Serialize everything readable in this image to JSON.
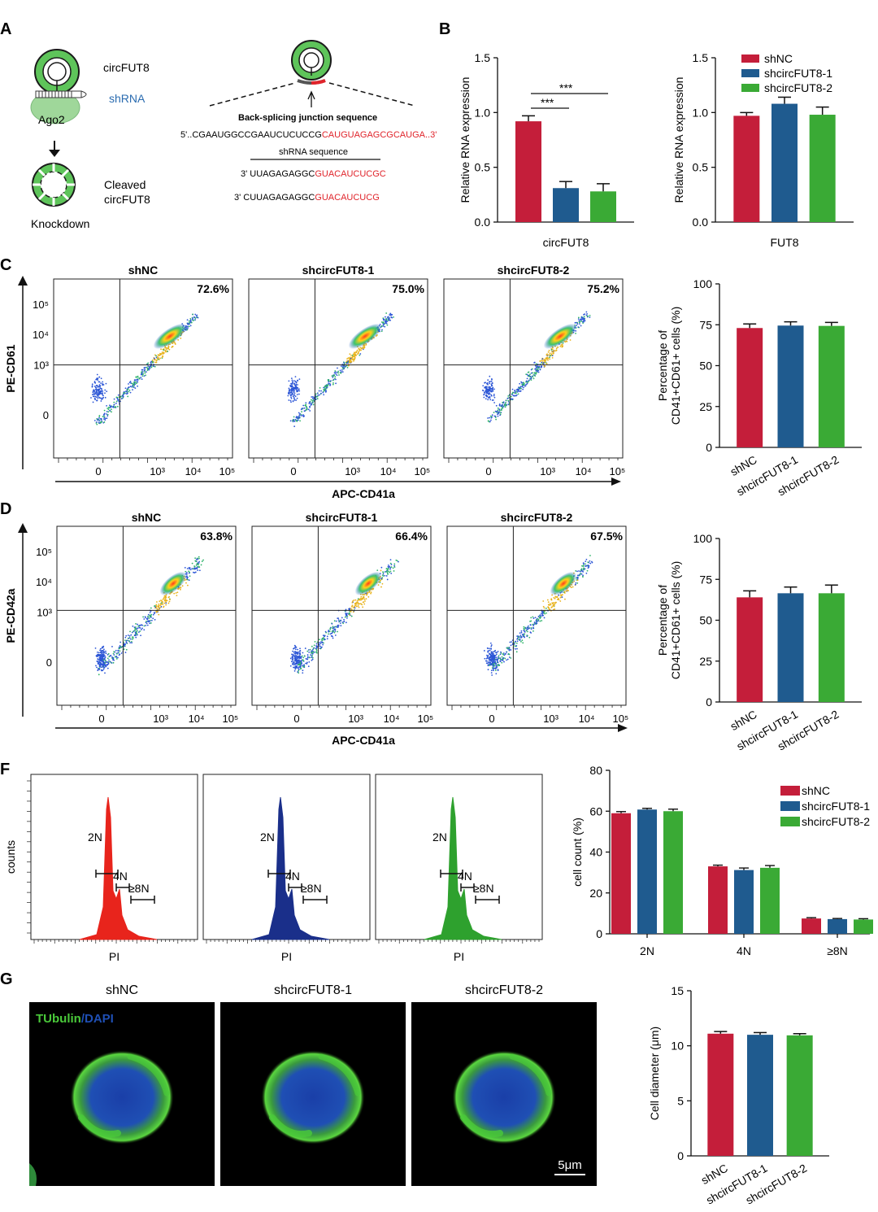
{
  "colors": {
    "red": "#c41e3a",
    "blue": "#1f5b8f",
    "green": "#3aaa35",
    "seq_red": "#e0242b",
    "histogram_red": "#e8241c",
    "histogram_blue": "#1a2f8a",
    "histogram_green": "#2ea12e",
    "cell_green": "#4ac93a",
    "cell_blue": "#1f4fb4"
  },
  "panel_A": {
    "letter": "A",
    "circ_label": "circFUT8",
    "shrna_label": "shRNA",
    "ago2_label": "Ago2",
    "cleaved_label_1": "Cleaved",
    "cleaved_label_2": "circFUT8",
    "knockdown_label": "Knockdown",
    "bsj_title": "Back-splicing junction sequence",
    "bsj_seq_black": "5'..CGAAUGGCCGAAUCUCUCCG",
    "bsj_seq_red": "CAUGUAGAGCGCAUGA..3'",
    "shrna_title": "shRNA sequence",
    "sh1_black": "3' UUAGAGAGGC",
    "sh1_red": "GUACAUCUCGC",
    "sh2_black": "3' CUUAGAGAGGC",
    "sh2_red": "GUACAUCUCG"
  },
  "panel_B": {
    "letter": "B",
    "sig1": "***",
    "sig2": "***"
  },
  "panel_C": {
    "letter": "C",
    "plots": [
      {
        "title": "shNC",
        "percent": "72.6%"
      },
      {
        "title": "shcircFUT8-1",
        "percent": "75.0%"
      },
      {
        "title": "shcircFUT8-2",
        "percent": "75.2%"
      }
    ],
    "ylabel": "PE-CD61",
    "xlabel": "APC-CD41a",
    "yticks": [
      "10⁵",
      "10⁴",
      "10³",
      "0"
    ],
    "xticks": [
      "0",
      "10³",
      "10⁴",
      "10⁵"
    ]
  },
  "panel_D": {
    "letter": "D",
    "plots": [
      {
        "title": "shNC",
        "percent": "63.8%"
      },
      {
        "title": "shcircFUT8-1",
        "percent": "66.4%"
      },
      {
        "title": "shcircFUT8-2",
        "percent": "67.5%"
      }
    ],
    "ylabel": "PE-CD42a",
    "xlabel": "APC-CD41a",
    "yticks": [
      "10⁵",
      "10⁴",
      "10³",
      "0"
    ],
    "xticks": [
      "0",
      "10³",
      "10⁴",
      "10⁵"
    ]
  },
  "panel_F": {
    "letter": "F",
    "ylabel": "counts",
    "xlabel": "PI",
    "gate_2n": "2N",
    "gate_4n": "4N",
    "gate_8n": "≥8N"
  },
  "panel_G": {
    "letter": "G",
    "titles": [
      "shNC",
      "shcircFUT8-1",
      "shcircFUT8-2"
    ],
    "stain_green": "TUbulin",
    "stain_sep": "/",
    "stain_blue": "DAPI",
    "scale_bar": "5μm"
  },
  "chart_data": [
    {
      "id": "B1",
      "type": "bar",
      "categories": [
        "shNC",
        "shcircFUT8-1",
        "shcircFUT8-2"
      ],
      "values": [
        0.92,
        0.31,
        0.28
      ],
      "errors": [
        0.05,
        0.06,
        0.07
      ],
      "xlabel": "circFUT8",
      "ylabel": "Relative RNA expression",
      "ylim": [
        0,
        1.5
      ],
      "yticks": [
        "0.0",
        "0.5",
        "1.0",
        "1.5"
      ]
    },
    {
      "id": "B2",
      "type": "bar",
      "categories": [
        "shNC",
        "shcircFUT8-1",
        "shcircFUT8-2"
      ],
      "values": [
        0.97,
        1.08,
        0.98
      ],
      "errors": [
        0.03,
        0.06,
        0.07
      ],
      "xlabel": "FUT8",
      "ylabel": "Relative RNA expression",
      "ylim": [
        0,
        1.5
      ],
      "yticks": [
        "0.0",
        "0.5",
        "1.0",
        "1.5"
      ],
      "legend": [
        "shNC",
        "shcircFUT8-1",
        "shcircFUT8-2"
      ]
    },
    {
      "id": "C",
      "type": "bar",
      "categories": [
        "shNC",
        "shcircFUT8-1",
        "shcircFUT8-2"
      ],
      "values": [
        73,
        74.5,
        74.3
      ],
      "errors": [
        2.5,
        2.3,
        2.1
      ],
      "ylabel_line1": "Percentage of",
      "ylabel_line2": "CD41+CD61+ cells (%)",
      "ylim": [
        0,
        100
      ],
      "yticks": [
        "0",
        "25",
        "50",
        "75",
        "100"
      ]
    },
    {
      "id": "D",
      "type": "bar",
      "categories": [
        "shNC",
        "shcircFUT8-1",
        "shcircFUT8-2"
      ],
      "values": [
        64,
        66.5,
        66.5
      ],
      "errors": [
        4,
        3.8,
        5
      ],
      "ylabel_line1": "Percentage of",
      "ylabel_line2": "CD41+CD61+ cells (%)",
      "ylim": [
        0,
        100
      ],
      "yticks": [
        "0",
        "25",
        "50",
        "75",
        "100"
      ]
    },
    {
      "id": "F",
      "type": "bar",
      "categories": [
        "2N",
        "4N",
        "≥8N"
      ],
      "series": [
        {
          "name": "shNC",
          "values": [
            59,
            33,
            7.5
          ],
          "errors": [
            0.8,
            0.6,
            0.4
          ]
        },
        {
          "name": "shcircFUT8-1",
          "values": [
            60.8,
            31.2,
            7.2
          ],
          "errors": [
            0.6,
            1.0,
            0.3
          ]
        },
        {
          "name": "shcircFUT8-2",
          "values": [
            60,
            32.3,
            7
          ],
          "errors": [
            1.0,
            1.1,
            0.4
          ]
        }
      ],
      "ylabel": "cell count (%)",
      "ylim": [
        0,
        80
      ],
      "yticks": [
        "0",
        "20",
        "40",
        "60",
        "80"
      ]
    },
    {
      "id": "G",
      "type": "bar",
      "categories": [
        "shNC",
        "shcircFUT8-1",
        "shcircFUT8-2"
      ],
      "values": [
        11.1,
        11.0,
        10.95
      ],
      "errors": [
        0.2,
        0.2,
        0.15
      ],
      "ylabel": "Cell diameter (μm)",
      "ylim": [
        0,
        15
      ],
      "yticks": [
        "0",
        "5",
        "10",
        "15"
      ]
    }
  ]
}
